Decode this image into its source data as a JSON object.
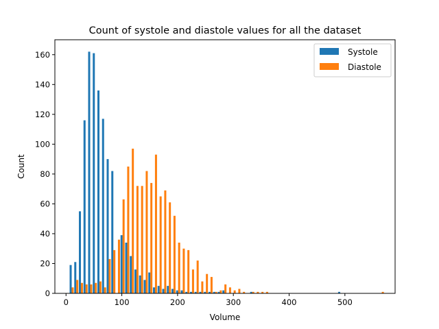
{
  "chart_data": {
    "type": "bar",
    "title": "Count of systole and diastole values for all the dataset",
    "xlabel": "Volume",
    "ylabel": "Count",
    "xlim": [
      -20,
      590
    ],
    "ylim": [
      0,
      170
    ],
    "xticks": [
      0,
      100,
      200,
      300,
      400,
      500
    ],
    "yticks": [
      0,
      20,
      40,
      60,
      80,
      100,
      120,
      140,
      160
    ],
    "legend_position": "top-right",
    "grid": false,
    "bin_width": 16.5,
    "series": [
      {
        "name": "Systole",
        "color": "#1f77b4",
        "x": [
          8.3,
          16.6,
          24.9,
          33.2,
          41.5,
          49.8,
          58.1,
          66.4,
          74.7,
          83.0,
          99.6,
          107.9,
          116.2,
          124.5,
          132.8,
          141.1,
          149.4,
          157.7,
          166.0,
          174.3,
          182.6,
          190.9,
          199.2,
          207.5,
          215.8,
          224.1,
          232.4,
          240.7,
          249.0,
          257.3,
          265.6,
          273.9,
          282.2,
          290.5,
          298.8,
          307.1,
          315.4,
          323.7,
          332.0,
          340.3,
          348.6,
          356.9,
          365.2,
          373.5,
          381.8,
          390.1,
          398.4,
          406.7,
          415.0,
          423.3,
          431.6,
          439.9,
          448.2,
          456.5,
          464.8,
          473.1,
          481.4,
          489.7
        ],
        "values": [
          19,
          21,
          55,
          116,
          162,
          161,
          136,
          117,
          90,
          82,
          39,
          34,
          25,
          16,
          12,
          9,
          14,
          4,
          5,
          3,
          5,
          3,
          2,
          2,
          1,
          1,
          1,
          1,
          1,
          1,
          1,
          1,
          2,
          0,
          0,
          0,
          0,
          0,
          1,
          0,
          0,
          0,
          0,
          0,
          0,
          0,
          0,
          0,
          0,
          0,
          0,
          0,
          0,
          0,
          0,
          0,
          0,
          1
        ]
      },
      {
        "name": "Diastole",
        "color": "#ff7f0e",
        "x": [
          11.9,
          20.2,
          28.5,
          36.8,
          45.1,
          53.4,
          61.7,
          70.0,
          78.3,
          86.6,
          94.9,
          103.2,
          111.5,
          119.8,
          128.1,
          136.4,
          144.7,
          153.0,
          161.3,
          169.6,
          177.9,
          186.2,
          194.5,
          202.8,
          211.1,
          219.4,
          227.7,
          236.0,
          244.3,
          252.6,
          260.9,
          269.2,
          277.5,
          285.8,
          294.1,
          302.4,
          310.7,
          319.0,
          327.3,
          335.6,
          343.9,
          352.2,
          360.5,
          368.8,
          377.1,
          385.4,
          393.7,
          402.0,
          410.3,
          418.6,
          426.9,
          435.2,
          443.5,
          451.8,
          460.1,
          468.4,
          476.7,
          485.0,
          493.3,
          501.6,
          509.9,
          518.2,
          526.5,
          534.8,
          543.1,
          551.4,
          559.7,
          568.0
        ],
        "values": [
          4,
          9,
          7,
          6,
          6,
          7,
          8,
          4,
          23,
          29,
          36,
          63,
          85,
          97,
          72,
          72,
          82,
          74,
          93,
          65,
          69,
          61,
          52,
          34,
          30,
          29,
          16,
          22,
          8,
          13,
          11,
          1,
          2,
          6,
          4,
          2,
          3,
          1,
          0,
          1,
          1,
          1,
          1,
          0,
          0,
          0,
          0,
          0,
          0,
          0,
          0,
          0,
          0,
          0,
          0,
          0,
          0,
          0,
          0,
          0,
          0,
          0,
          0,
          0,
          0,
          0,
          0,
          1
        ]
      }
    ]
  }
}
